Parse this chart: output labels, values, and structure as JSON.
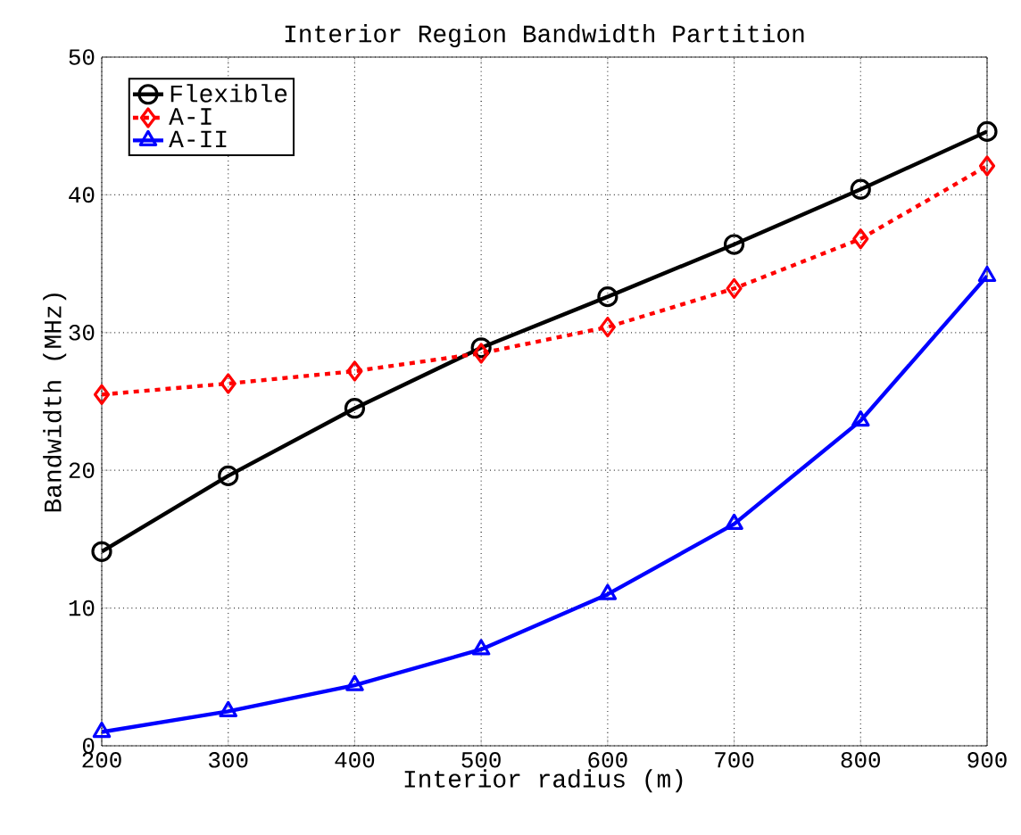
{
  "chart_data": {
    "type": "line",
    "title": "Interior Region Bandwidth Partition",
    "xlabel": "Interior radius (m)",
    "ylabel": "Bandwidth (MHz)",
    "x": [
      200,
      300,
      400,
      500,
      600,
      700,
      800,
      900
    ],
    "series": [
      {
        "name": "Flexible",
        "color": "#000000",
        "marker": "circle",
        "line_style": "solid",
        "values": [
          14.1,
          19.6,
          24.5,
          28.9,
          32.6,
          36.4,
          40.4,
          44.6
        ]
      },
      {
        "name": "A-I",
        "color": "#ff0000",
        "marker": "diamond",
        "line_style": "dashed",
        "values": [
          25.5,
          26.3,
          27.2,
          28.5,
          30.4,
          33.2,
          36.8,
          42.1
        ]
      },
      {
        "name": "A-II",
        "color": "#0000ff",
        "marker": "triangle",
        "line_style": "solid",
        "values": [
          1.0,
          2.5,
          4.4,
          7.0,
          11.0,
          16.1,
          23.6,
          34.1
        ]
      }
    ],
    "xlim": [
      200,
      900
    ],
    "ylim": [
      0,
      50
    ],
    "xticks": [
      200,
      300,
      400,
      500,
      600,
      700,
      800,
      900
    ],
    "yticks": [
      0,
      10,
      20,
      30,
      40,
      50
    ],
    "grid": true,
    "legend": "top left"
  }
}
